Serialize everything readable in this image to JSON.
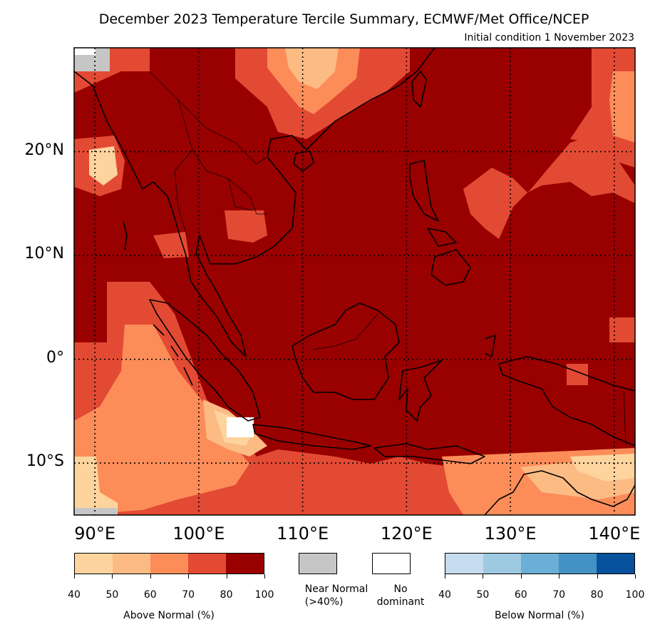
{
  "title": "December 2023 Temperature Tercile Summary, ECMWF/Met Office/NCEP",
  "subtitle": "Initial condition 1 November 2023",
  "map": {
    "extent": {
      "lon": [
        88,
        142
      ],
      "lat": [
        -15,
        30
      ]
    },
    "lat_labels": [
      {
        "value": 20,
        "text": "20°N"
      },
      {
        "value": 10,
        "text": "10°N"
      },
      {
        "value": 0,
        "text": "0°"
      },
      {
        "value": -10,
        "text": "10°S"
      }
    ],
    "lon_labels": [
      {
        "value": 90,
        "text": "90°E"
      },
      {
        "value": 100,
        "text": "100°E"
      },
      {
        "value": 110,
        "text": "110°E"
      },
      {
        "value": 120,
        "text": "120°E"
      },
      {
        "value": 130,
        "text": "130°E"
      },
      {
        "value": 140,
        "text": "140°E"
      }
    ],
    "gridlines": "dotted",
    "dominant_category": "Above Normal 80-100%"
  },
  "legend": {
    "above": {
      "label": "Above Normal (%)",
      "ticks": [
        "40",
        "50",
        "60",
        "70",
        "80",
        "100"
      ],
      "colors": [
        "#fdd49e",
        "#fdbb84",
        "#fc8d59",
        "#e34a33",
        "#990000"
      ]
    },
    "near_normal": {
      "label_line1": "Near Normal",
      "label_line2": "(>40%)",
      "color": "#c6c6c6"
    },
    "no_dominant": {
      "label_line1": "No",
      "label_line2": "dominant",
      "color": "#ffffff"
    },
    "below": {
      "label": "Below Normal (%)",
      "ticks": [
        "40",
        "50",
        "60",
        "70",
        "80",
        "100"
      ],
      "colors": [
        "#c6dbef",
        "#9ecae1",
        "#6baed6",
        "#4292c6",
        "#08519c"
      ]
    }
  }
}
